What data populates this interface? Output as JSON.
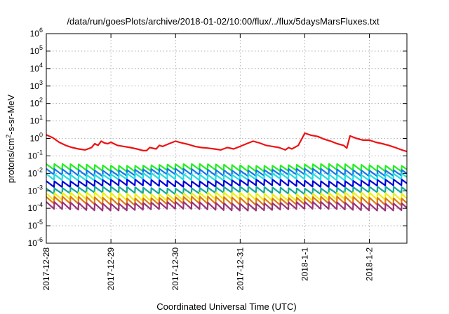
{
  "chart_data": {
    "type": "line",
    "title": "/data/run/goesPlots/archive/2018-01-02/10:00/flux/../flux/5daysMarsFluxes.txt",
    "xlabel": "Coordinated Universal Time (UTC)",
    "ylabel_parts": {
      "prefix": "protons/cm",
      "sup": "2",
      "suffix": "-s-sr-MeV"
    },
    "y_scale": "log",
    "ylim": [
      1e-06,
      1000000.0
    ],
    "xlim": [
      0,
      5.58
    ],
    "x_unit_note": "days since 2017-12-28",
    "grid": true,
    "legend": "none",
    "y_ticks": [
      {
        "value": 1000000.0,
        "base": "10",
        "exp": "6"
      },
      {
        "value": 100000.0,
        "base": "10",
        "exp": "5"
      },
      {
        "value": 10000.0,
        "base": "10",
        "exp": "4"
      },
      {
        "value": 1000.0,
        "base": "10",
        "exp": "3"
      },
      {
        "value": 100.0,
        "base": "10",
        "exp": "2"
      },
      {
        "value": 10.0,
        "base": "10",
        "exp": "1"
      },
      {
        "value": 1.0,
        "base": "10",
        "exp": "0"
      },
      {
        "value": 0.1,
        "base": "10",
        "exp": "-1"
      },
      {
        "value": 0.01,
        "base": "10",
        "exp": "-2"
      },
      {
        "value": 0.001,
        "base": "10",
        "exp": "-3"
      },
      {
        "value": 0.0001,
        "base": "10",
        "exp": "-4"
      },
      {
        "value": 1e-05,
        "base": "10",
        "exp": "-5"
      },
      {
        "value": 1e-06,
        "base": "10",
        "exp": "-6"
      }
    ],
    "x_ticks": [
      {
        "value": 0,
        "label": "2017-12-28"
      },
      {
        "value": 1,
        "label": "2017-12-29"
      },
      {
        "value": 2,
        "label": "2017-12-30"
      },
      {
        "value": 3,
        "label": "2017-12-31"
      },
      {
        "value": 4,
        "label": "2018-1-1"
      },
      {
        "value": 5,
        "label": "2018-1-2"
      }
    ],
    "series": [
      {
        "color": "#ee1111",
        "x": [
          0,
          0.1,
          0.2,
          0.3,
          0.4,
          0.5,
          0.6,
          0.7,
          0.75,
          0.8,
          0.85,
          0.9,
          0.95,
          1.0,
          1.1,
          1.2,
          1.3,
          1.4,
          1.5,
          1.55,
          1.6,
          1.7,
          1.75,
          1.8,
          1.9,
          2.0,
          2.1,
          2.2,
          2.3,
          2.4,
          2.5,
          2.6,
          2.7,
          2.8,
          2.9,
          3.0,
          3.1,
          3.2,
          3.3,
          3.4,
          3.5,
          3.6,
          3.7,
          3.75,
          3.8,
          3.9,
          4.0,
          4.1,
          4.2,
          4.3,
          4.4,
          4.5,
          4.6,
          4.65,
          4.7,
          4.8,
          4.9,
          5.0,
          5.1,
          5.2,
          5.3,
          5.4,
          5.5,
          5.58
        ],
        "y": [
          1.6,
          1.1,
          0.6,
          0.4,
          0.3,
          0.25,
          0.22,
          0.3,
          0.5,
          0.4,
          0.7,
          0.55,
          0.5,
          0.6,
          0.4,
          0.35,
          0.3,
          0.25,
          0.2,
          0.2,
          0.3,
          0.25,
          0.4,
          0.35,
          0.5,
          0.7,
          0.55,
          0.45,
          0.35,
          0.3,
          0.28,
          0.25,
          0.22,
          0.3,
          0.25,
          0.35,
          0.5,
          0.7,
          0.55,
          0.4,
          0.35,
          0.3,
          0.22,
          0.3,
          0.25,
          0.4,
          2.0,
          1.5,
          1.3,
          0.9,
          0.7,
          0.5,
          0.4,
          0.28,
          1.4,
          1.0,
          0.8,
          0.8,
          0.6,
          0.5,
          0.4,
          0.3,
          0.22,
          0.18
        ]
      },
      {
        "color": "#22ee22",
        "base": 0.014,
        "amp": 2.2
      },
      {
        "color": "#1177ee",
        "base": 0.0075,
        "amp": 2.2
      },
      {
        "color": "#22dddd",
        "base": 0.0042,
        "amp": 2.2
      },
      {
        "color": "#0000dd",
        "base": 0.0018,
        "amp": 2.2
      },
      {
        "color": "#11aa99",
        "base": 0.0007,
        "amp": 2.2
      },
      {
        "color": "#eeee11",
        "base": 0.00028,
        "amp": 2.6
      },
      {
        "color": "#dd7711",
        "base": 0.00016,
        "amp": 2.6
      },
      {
        "color": "#993377",
        "base": 8e-05,
        "amp": 2.6
      }
    ],
    "sawtooth_period_days": 0.125
  }
}
